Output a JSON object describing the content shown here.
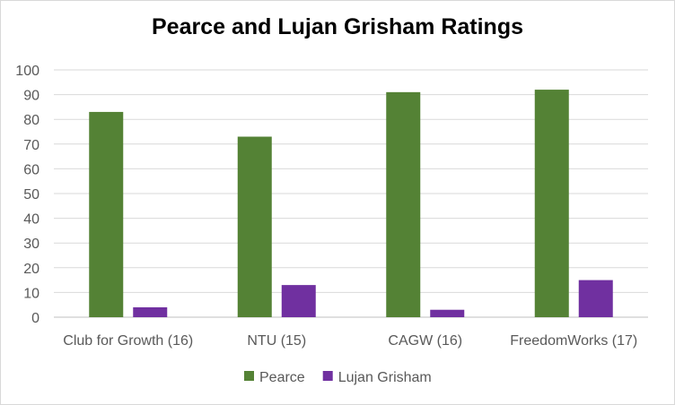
{
  "chart_data": {
    "type": "bar",
    "title": "Pearce and Lujan Grisham Ratings",
    "categories": [
      "Club for Growth (16)",
      "NTU (15)",
      "CAGW (16)",
      "FreedomWorks (17)"
    ],
    "series": [
      {
        "name": "Pearce",
        "values": [
          83,
          73,
          91,
          92
        ],
        "color": "#548235"
      },
      {
        "name": "Lujan Grisham",
        "values": [
          4,
          13,
          3,
          15
        ],
        "color": "#7030a0"
      }
    ],
    "ylim": [
      0,
      100
    ],
    "yticks": [
      0,
      10,
      20,
      30,
      40,
      50,
      60,
      70,
      80,
      90,
      100
    ],
    "grid": true,
    "legend_position": "bottom"
  }
}
